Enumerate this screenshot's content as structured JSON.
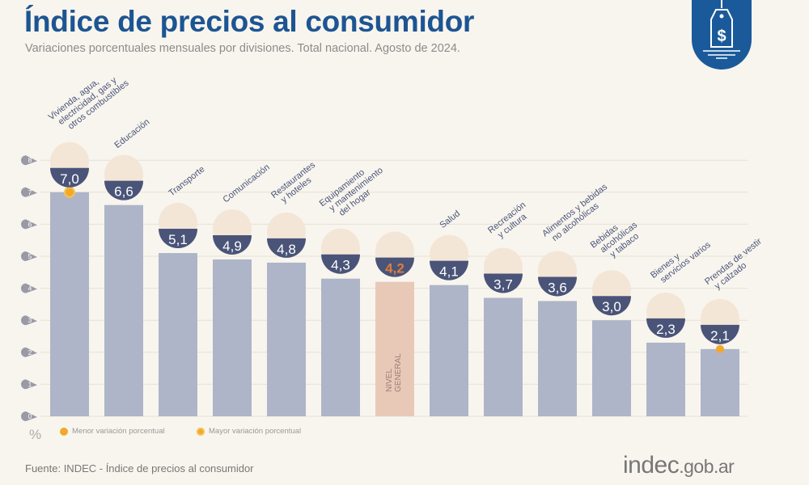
{
  "header": {
    "title": "Índice de precios al consumidor",
    "subtitle": "Variaciones porcentuales mensuales por divisiones. Total nacional. Agosto de 2024."
  },
  "logo_icon": "price-tag-dollar-icon",
  "footer": {
    "source": "Fuente: INDEC - Índice de precios al consumidor",
    "brand_main": "indec",
    "brand_suffix": ".gob.ar"
  },
  "legend": {
    "unit": "%",
    "min_label": "Menor variación porcentual",
    "max_label": "Mayor variación porcentual"
  },
  "colors": {
    "title": "#1d5592",
    "bar": "#aeb5c8",
    "bar_general": "#e8c9b8",
    "badge": "#4a5478",
    "general_value": "#e07b3c",
    "marker": "#f0a92a",
    "grid": "#e6e1d6"
  },
  "chart_data": {
    "type": "bar",
    "title": "Índice de precios al consumidor",
    "subtitle": "Variaciones porcentuales mensuales por divisiones. Total nacional. Agosto de 2024.",
    "xlabel": "",
    "ylabel": "%",
    "ylim": [
      0,
      8
    ],
    "yticks": [
      0,
      1,
      2,
      3,
      4,
      5,
      6,
      7,
      8
    ],
    "grid": true,
    "legend_position": "bottom-left",
    "categories": [
      "Vivienda, agua, electricidad, gas y otros combustibles",
      "Educación",
      "Transporte",
      "Comunicación",
      "Restaurantes y hoteles",
      "Equipamiento y mantenimiento del hogar",
      "Nivel general",
      "Salud",
      "Recreación y cultura",
      "Alimentos y bebidas no alcohólicas",
      "Bebidas alcohólicas y tabaco",
      "Bienes y servicios varios",
      "Prendas de vestir y calzado"
    ],
    "label_lines": [
      [
        "Vivienda, agua,",
        "electricidad, gas y",
        "otros combustibles"
      ],
      [
        "Educación"
      ],
      [
        "Transporte"
      ],
      [
        "Comunicación"
      ],
      [
        "Restaurantes",
        "y hoteles"
      ],
      [
        "Equipamiento",
        "y mantenimiento",
        "del hogar"
      ],
      [],
      [
        "Salud"
      ],
      [
        "Recreación",
        "y cultura"
      ],
      [
        "Alimentos y bebidas",
        "no alcohólicas"
      ],
      [
        "Bebidas",
        "alcohólicas",
        "y tabaco"
      ],
      [
        "Bienes y",
        "servicios varios"
      ],
      [
        "Prendas de vestir",
        "y calzado"
      ]
    ],
    "value_labels": [
      "7,0",
      "6,6",
      "5,1",
      "4,9",
      "4,8",
      "4,3",
      "4,2",
      "4,1",
      "3,7",
      "3,6",
      "3,0",
      "2,3",
      "2,1"
    ],
    "values": [
      7.0,
      6.6,
      5.1,
      4.9,
      4.8,
      4.3,
      4.2,
      4.1,
      3.7,
      3.6,
      3.0,
      2.3,
      2.1
    ],
    "icons": [
      "key-lightbulb-icon",
      "notebook-pencil-icon",
      "car-sube-icon",
      "smartphone-icon",
      "plate-cutlery-icon",
      "washing-machine-icon",
      "shopping-bag-icon",
      "first-aid-icon",
      "umbrella-sun-icon",
      "food-chicken-icon",
      "wine-bottle-icon",
      "comb-scissors-icon",
      "tshirt-shoe-icon"
    ],
    "highlight_index": 6,
    "highlight_inside_label": [
      "NIVEL",
      "GENERAL"
    ],
    "max_index": 0,
    "min_index": 12
  }
}
